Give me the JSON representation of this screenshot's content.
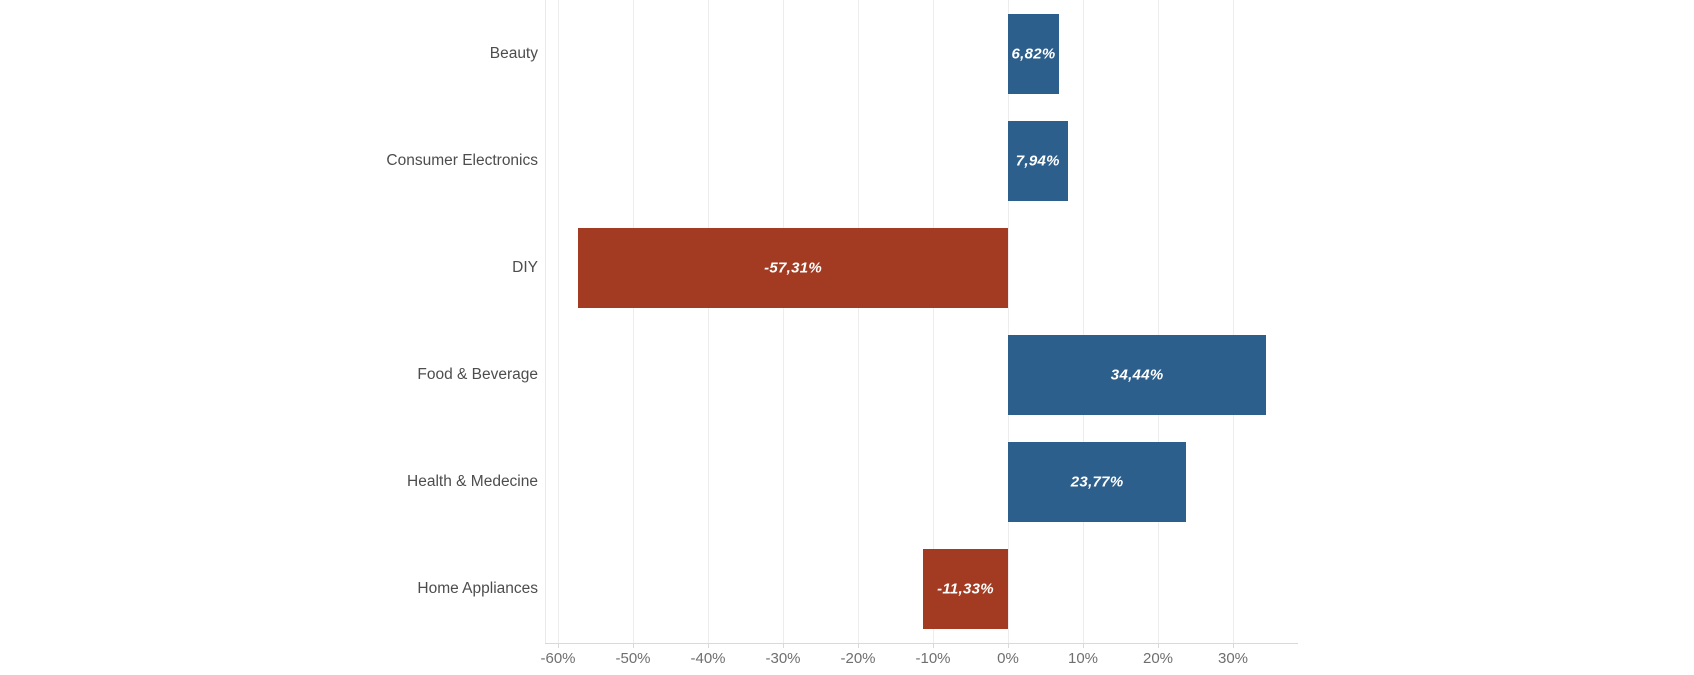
{
  "chart_data": {
    "type": "bar",
    "orientation": "horizontal",
    "title": "",
    "xlabel": "",
    "ylabel": "",
    "legend": "none",
    "grid": "vertical-gridlines",
    "categories": [
      "Beauty",
      "Consumer Electronics",
      "DIY",
      "Food & Beverage",
      "Health & Medecine",
      "Home Appliances"
    ],
    "values": [
      6.82,
      7.94,
      -57.31,
      34.44,
      23.77,
      -11.33
    ],
    "value_labels": [
      "6,82%",
      "7,94%",
      "-57,31%",
      "34,44%",
      "23,77%",
      "-11,33%"
    ],
    "x_ticks": [
      {
        "value": -60,
        "label": "-60%"
      },
      {
        "value": -50,
        "label": "-50%"
      },
      {
        "value": -40,
        "label": "-40%"
      },
      {
        "value": -30,
        "label": "-30%"
      },
      {
        "value": -20,
        "label": "-20%"
      },
      {
        "value": -10,
        "label": "-10%"
      },
      {
        "value": 0,
        "label": "0%"
      },
      {
        "value": 10,
        "label": "10%"
      },
      {
        "value": 20,
        "label": "20%"
      },
      {
        "value": 30,
        "label": "30%"
      }
    ],
    "xlim": [
      -61.7,
      38.7
    ],
    "colors": {
      "positive_bar": "#2d5f8c",
      "negative_bar": "#a23b22",
      "value_label": "#ffffff",
      "category_label": "#4d4d4d",
      "tick_label": "#6f6f6f",
      "gridline": "#ededed",
      "plot_border": "#e9e9e9",
      "axis_line": "#d9d9d9",
      "background": "#ffffff"
    }
  }
}
